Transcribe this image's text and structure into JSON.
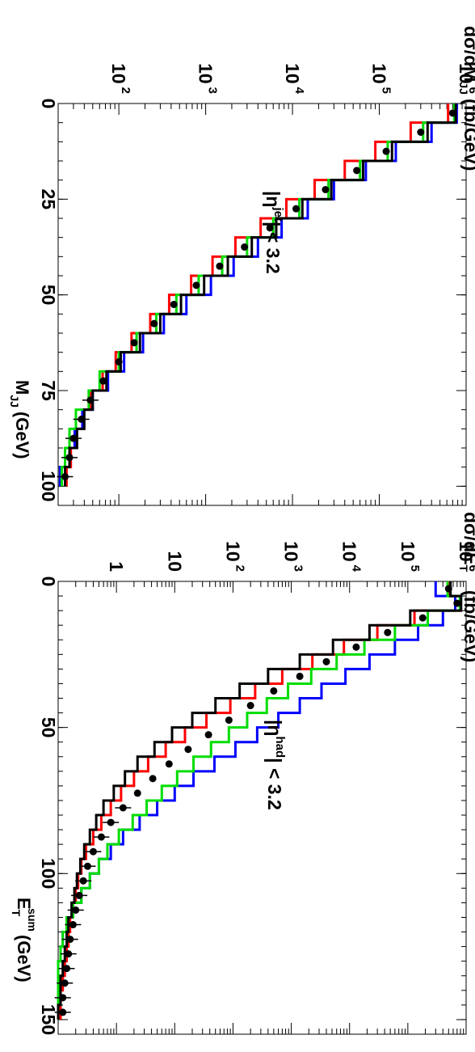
{
  "chart_data": [
    {
      "type": "line",
      "panel": "top",
      "xlabel": "M",
      "xlabel_sub": "JJ",
      "xlabel_unit": "(GeV)",
      "ylabel_main": "dσ/dM",
      "ylabel_sub": "JJ",
      "ylabel_unit": "(fb/GeV)",
      "annotation": {
        "pre": "|η",
        "sup": "jet",
        "post": "| < 3.2"
      },
      "xlim": [
        0,
        105
      ],
      "ylim": [
        20,
        1000000
      ],
      "yscale": "log",
      "x_ticks": [
        "0",
        "25",
        "50",
        "75",
        "100"
      ],
      "y_ticks": [
        {
          "base": "10",
          "exp": "2"
        },
        {
          "base": "10",
          "exp": "3"
        },
        {
          "base": "10",
          "exp": "4"
        },
        {
          "base": "10",
          "exp": "5"
        },
        {
          "base": "10",
          "exp": "6"
        }
      ],
      "bin_edges": [
        0,
        5,
        10,
        15,
        20,
        25,
        30,
        35,
        40,
        45,
        50,
        55,
        60,
        65,
        70,
        75,
        80,
        85,
        90,
        95,
        100
      ],
      "series": [
        {
          "color": "#ff0000",
          "style": "histogram",
          "values": [
            620000,
            230000,
            90000,
            40000,
            18000,
            8500,
            4300,
            2200,
            1200,
            680,
            380,
            230,
            140,
            92,
            65,
            47,
            38,
            31,
            28,
            25
          ]
        },
        {
          "color": "#0000ff",
          "style": "histogram",
          "values": [
            780000,
            400000,
            155000,
            70000,
            30000,
            15000,
            7500,
            4000,
            2100,
            1150,
            600,
            330,
            190,
            115,
            75,
            50,
            38,
            31,
            24,
            21
          ]
        },
        {
          "color": "#00dd00",
          "style": "histogram",
          "values": [
            730000,
            320000,
            125000,
            60000,
            26000,
            12000,
            6000,
            3000,
            1550,
            830,
            460,
            270,
            160,
            100,
            60,
            45,
            32,
            27,
            24,
            22
          ]
        },
        {
          "color": "#000000",
          "style": "histogram",
          "values": [
            760000,
            360000,
            140000,
            65000,
            28000,
            13000,
            6500,
            3400,
            1800,
            960,
            520,
            300,
            175,
            105,
            72,
            50,
            40,
            33,
            27,
            24
          ]
        },
        {
          "color": "#000000",
          "style": "points",
          "values": [
            700000,
            300000,
            120000,
            55000,
            24000,
            11000,
            5500,
            2800,
            1450,
            780,
            430,
            255,
            150,
            100,
            66,
            47,
            37,
            30,
            27,
            24
          ]
        }
      ]
    },
    {
      "type": "line",
      "panel": "bottom",
      "xlabel": "E",
      "xlabel_sub": "T",
      "xlabel_sup": "sum",
      "xlabel_unit": "(GeV)",
      "ylabel_main": "dσ/dE",
      "ylabel_sub": "T",
      "ylabel_sup": "sum",
      "ylabel_unit": "(fb/GeV)",
      "annotation": {
        "pre": "|η",
        "sup": "had",
        "post": "| < 3.2"
      },
      "xlim": [
        0,
        155
      ],
      "ylim": [
        0.1,
        1000000
      ],
      "yscale": "log",
      "x_ticks": [
        "0",
        "50",
        "100",
        "150"
      ],
      "y_ticks": [
        {
          "base": "1",
          "exp": ""
        },
        {
          "base": "10",
          "exp": ""
        },
        {
          "base": "10",
          "exp": "2"
        },
        {
          "base": "10",
          "exp": "3"
        },
        {
          "base": "10",
          "exp": "4"
        },
        {
          "base": "10",
          "exp": "5"
        },
        {
          "base": "10",
          "exp": "6"
        }
      ],
      "bin_edges": [
        0,
        5,
        10,
        15,
        20,
        25,
        30,
        35,
        40,
        45,
        50,
        55,
        60,
        65,
        70,
        75,
        80,
        85,
        90,
        95,
        100,
        105,
        110,
        115,
        120,
        125,
        130,
        135,
        140,
        145,
        150
      ],
      "series": [
        {
          "color": "#ff0000",
          "style": "histogram",
          "values": [
            520000,
            800000,
            130000,
            30000,
            8000,
            2300,
            700,
            240,
            90,
            35,
            15,
            7,
            3.5,
            2,
            1.2,
            0.8,
            0.55,
            0.4,
            0.3,
            0.25,
            0.22,
            0.2,
            0.18,
            0.16,
            0.15,
            0.14,
            0.13,
            0.12,
            0.11,
            0.11
          ]
        },
        {
          "color": "#0000ff",
          "style": "histogram",
          "values": [
            300000,
            650000,
            400000,
            150000,
            60000,
            22000,
            8500,
            3300,
            1400,
            600,
            260,
            110,
            48,
            21,
            10,
            5,
            2.5,
            1.3,
            0.8,
            0.5,
            0.35,
            0.25,
            0.18,
            0.14,
            0.12,
            0.11,
            0.1,
            0.1,
            0.1,
            0.1
          ]
        },
        {
          "color": "#00dd00",
          "style": "histogram",
          "values": [
            480000,
            780000,
            220000,
            60000,
            18000,
            6000,
            2200,
            880,
            380,
            175,
            85,
            42,
            21,
            11,
            6,
            3.3,
            1.9,
            1.1,
            0.7,
            0.5,
            0.35,
            0.25,
            0.18,
            0.14,
            0.12,
            0.11,
            0.1,
            0.1,
            0.1,
            0.1
          ]
        },
        {
          "color": "#000000",
          "style": "histogram",
          "values": [
            540000,
            820000,
            110000,
            22000,
            5200,
            1400,
            400,
            130,
            50,
            20,
            9,
            4.5,
            2.3,
            1.4,
            0.9,
            0.6,
            0.45,
            0.35,
            0.28,
            0.24,
            0.21,
            0.19,
            0.17,
            0.15,
            0.14,
            0.13,
            0.12,
            0.11,
            0.11,
            0.1
          ]
        },
        {
          "color": "#000000",
          "style": "points",
          "values": [
            500000,
            700000,
            180000,
            45000,
            13000,
            4000,
            1400,
            500,
            200,
            85,
            38,
            17,
            8,
            4.2,
            2.3,
            1.3,
            0.8,
            0.55,
            0.4,
            0.32,
            0.27,
            0.23,
            0.2,
            0.18,
            0.16,
            0.15,
            0.14,
            0.13,
            0.12,
            0.12
          ]
        }
      ]
    }
  ]
}
